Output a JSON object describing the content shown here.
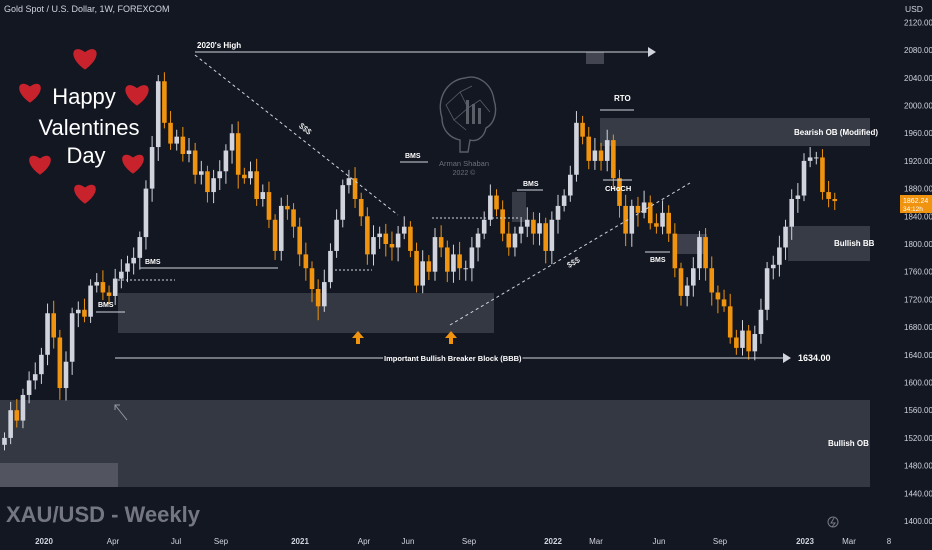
{
  "header": {
    "symbol_line": "Gold Spot / U.S. Dollar, 1W, FOREXCOM",
    "currency": "USD"
  },
  "watermark": "XAU/USD - Weekly",
  "greeting": {
    "line1": "Happy",
    "line2": "Valentines",
    "line3": "Day"
  },
  "logo": {
    "name": "Arman Shaban",
    "year": "2022 ©"
  },
  "price_badge": {
    "price": "1862.24",
    "countdown": "34:12h"
  },
  "colors": {
    "background": "#131722",
    "bull": "#d1d4dc",
    "bear": "#f0930e",
    "zone": "#50535e",
    "heart": "#c8232c",
    "line": "#d1d4dc",
    "arrow": "#f0930e"
  },
  "chart_data": {
    "type": "candlestick",
    "title": "Gold Spot / U.S. Dollar, 1W, FOREXCOM",
    "ylabel": "USD",
    "ylim": [
      1395,
      2160
    ],
    "y_ticks": [
      2120,
      2080,
      2040,
      2000,
      1960,
      1920,
      1880,
      1840,
      1800,
      1760,
      1720,
      1680,
      1640,
      1600,
      1560,
      1520,
      1480,
      1440,
      1400
    ],
    "x_ticks": [
      "2020",
      "Apr",
      "Jul",
      "Sep",
      "2021",
      "Apr",
      "Jun",
      "Sep",
      "2022",
      "Mar",
      "Jun",
      "Sep",
      "2023",
      "Mar",
      "8"
    ],
    "grid": false,
    "series": [
      {
        "closes": [
          1520,
          1560,
          1545,
          1582,
          1603,
          1612,
          1640,
          1700,
          1665,
          1592,
          1630,
          1700,
          1705,
          1695,
          1740,
          1745,
          1730,
          1725,
          1750,
          1760,
          1772,
          1780,
          1810,
          1880,
          1940,
          2035,
          1975,
          1945,
          1955,
          1930,
          1935,
          1900,
          1905,
          1875,
          1895,
          1905,
          1935,
          1960,
          1900,
          1895,
          1905,
          1865,
          1875,
          1835,
          1790,
          1855,
          1850,
          1825,
          1785,
          1765,
          1735,
          1710,
          1745,
          1790,
          1835,
          1885,
          1895,
          1865,
          1840,
          1785,
          1810,
          1815,
          1800,
          1795,
          1815,
          1825,
          1790,
          1740,
          1775,
          1760,
          1810,
          1795,
          1760,
          1785,
          1765,
          1765,
          1795,
          1815,
          1835,
          1870,
          1850,
          1815,
          1795,
          1815,
          1825,
          1835,
          1815,
          1830,
          1790,
          1835,
          1855,
          1870,
          1900,
          1975,
          1955,
          1920,
          1935,
          1920,
          1950,
          1895,
          1855,
          1815,
          1855,
          1845,
          1860,
          1830,
          1825,
          1845,
          1815,
          1765,
          1725,
          1740,
          1765,
          1810,
          1765,
          1730,
          1720,
          1710,
          1665,
          1650,
          1675,
          1645,
          1670,
          1705,
          1765,
          1770,
          1795,
          1825,
          1865,
          1870,
          1920,
          1925,
          1925,
          1875,
          1865,
          1862
        ]
      }
    ],
    "annotations": [
      {
        "label": "2020's High",
        "price": 2075
      },
      {
        "label": "$$$"
      },
      {
        "label": "BMS"
      },
      {
        "label": "RTO"
      },
      {
        "label": "CHoCH"
      },
      {
        "label": "Bearish OB (Modified)"
      },
      {
        "label": "Bullish BB"
      },
      {
        "label": "Important Bullish Breaker Block (BBB)"
      },
      {
        "label": "1634.00",
        "price": 1634
      },
      {
        "label": "Bullish OB"
      }
    ]
  }
}
